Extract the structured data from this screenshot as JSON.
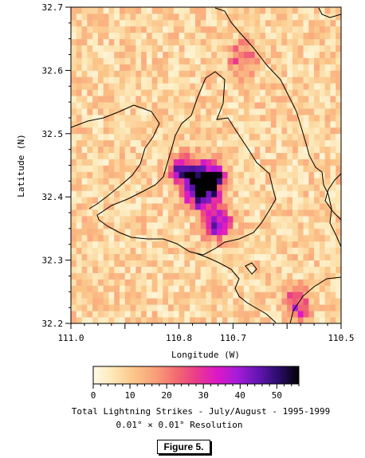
{
  "chart_data": {
    "type": "heatmap",
    "xlabel": "Longitude (W)",
    "ylabel": "Latitude (N)",
    "xlim": [
      111.0,
      110.5
    ],
    "ylim": [
      32.2,
      32.7
    ],
    "x_ticks": [
      "111.0",
      "110.8",
      "110.7",
      "110.5"
    ],
    "x_tick_values": [
      111.0,
      110.8,
      110.7,
      110.5
    ],
    "y_ticks": [
      "32.7",
      "32.6",
      "32.5",
      "32.4",
      "32.3",
      "32.2"
    ],
    "y_tick_values": [
      32.7,
      32.6,
      32.5,
      32.4,
      32.3,
      32.2
    ],
    "cell_size_deg": 0.01,
    "colorbar": {
      "ticks": [
        "0",
        "10",
        "20",
        "30",
        "40",
        "50"
      ],
      "tick_values": [
        0,
        10,
        20,
        30,
        40,
        50
      ],
      "range": [
        0,
        56
      ]
    },
    "description_lines": [
      "Total Lightning Strikes - July/August - 1995-1999",
      "0.01° × 0.01° Resolution"
    ],
    "hotspots": [
      {
        "lon": 110.76,
        "lat": 32.41,
        "peak": 55
      },
      {
        "lon": 110.74,
        "lat": 32.43,
        "peak": 45
      },
      {
        "lon": 110.79,
        "lat": 32.44,
        "peak": 38
      },
      {
        "lon": 110.73,
        "lat": 32.36,
        "peak": 34
      },
      {
        "lon": 110.58,
        "lat": 32.23,
        "peak": 24
      },
      {
        "lon": 110.68,
        "lat": 32.62,
        "peak": 20
      }
    ],
    "background_level": 10
  },
  "figure_label": "Figure 5.",
  "colors": {
    "scale": [
      "#fffbe8",
      "#fde6b4",
      "#fbc488",
      "#f9a07a",
      "#f36d70",
      "#ea3c8a",
      "#dd18c6",
      "#a61cd8",
      "#6416b4",
      "#2c0c6c",
      "#000000"
    ]
  }
}
